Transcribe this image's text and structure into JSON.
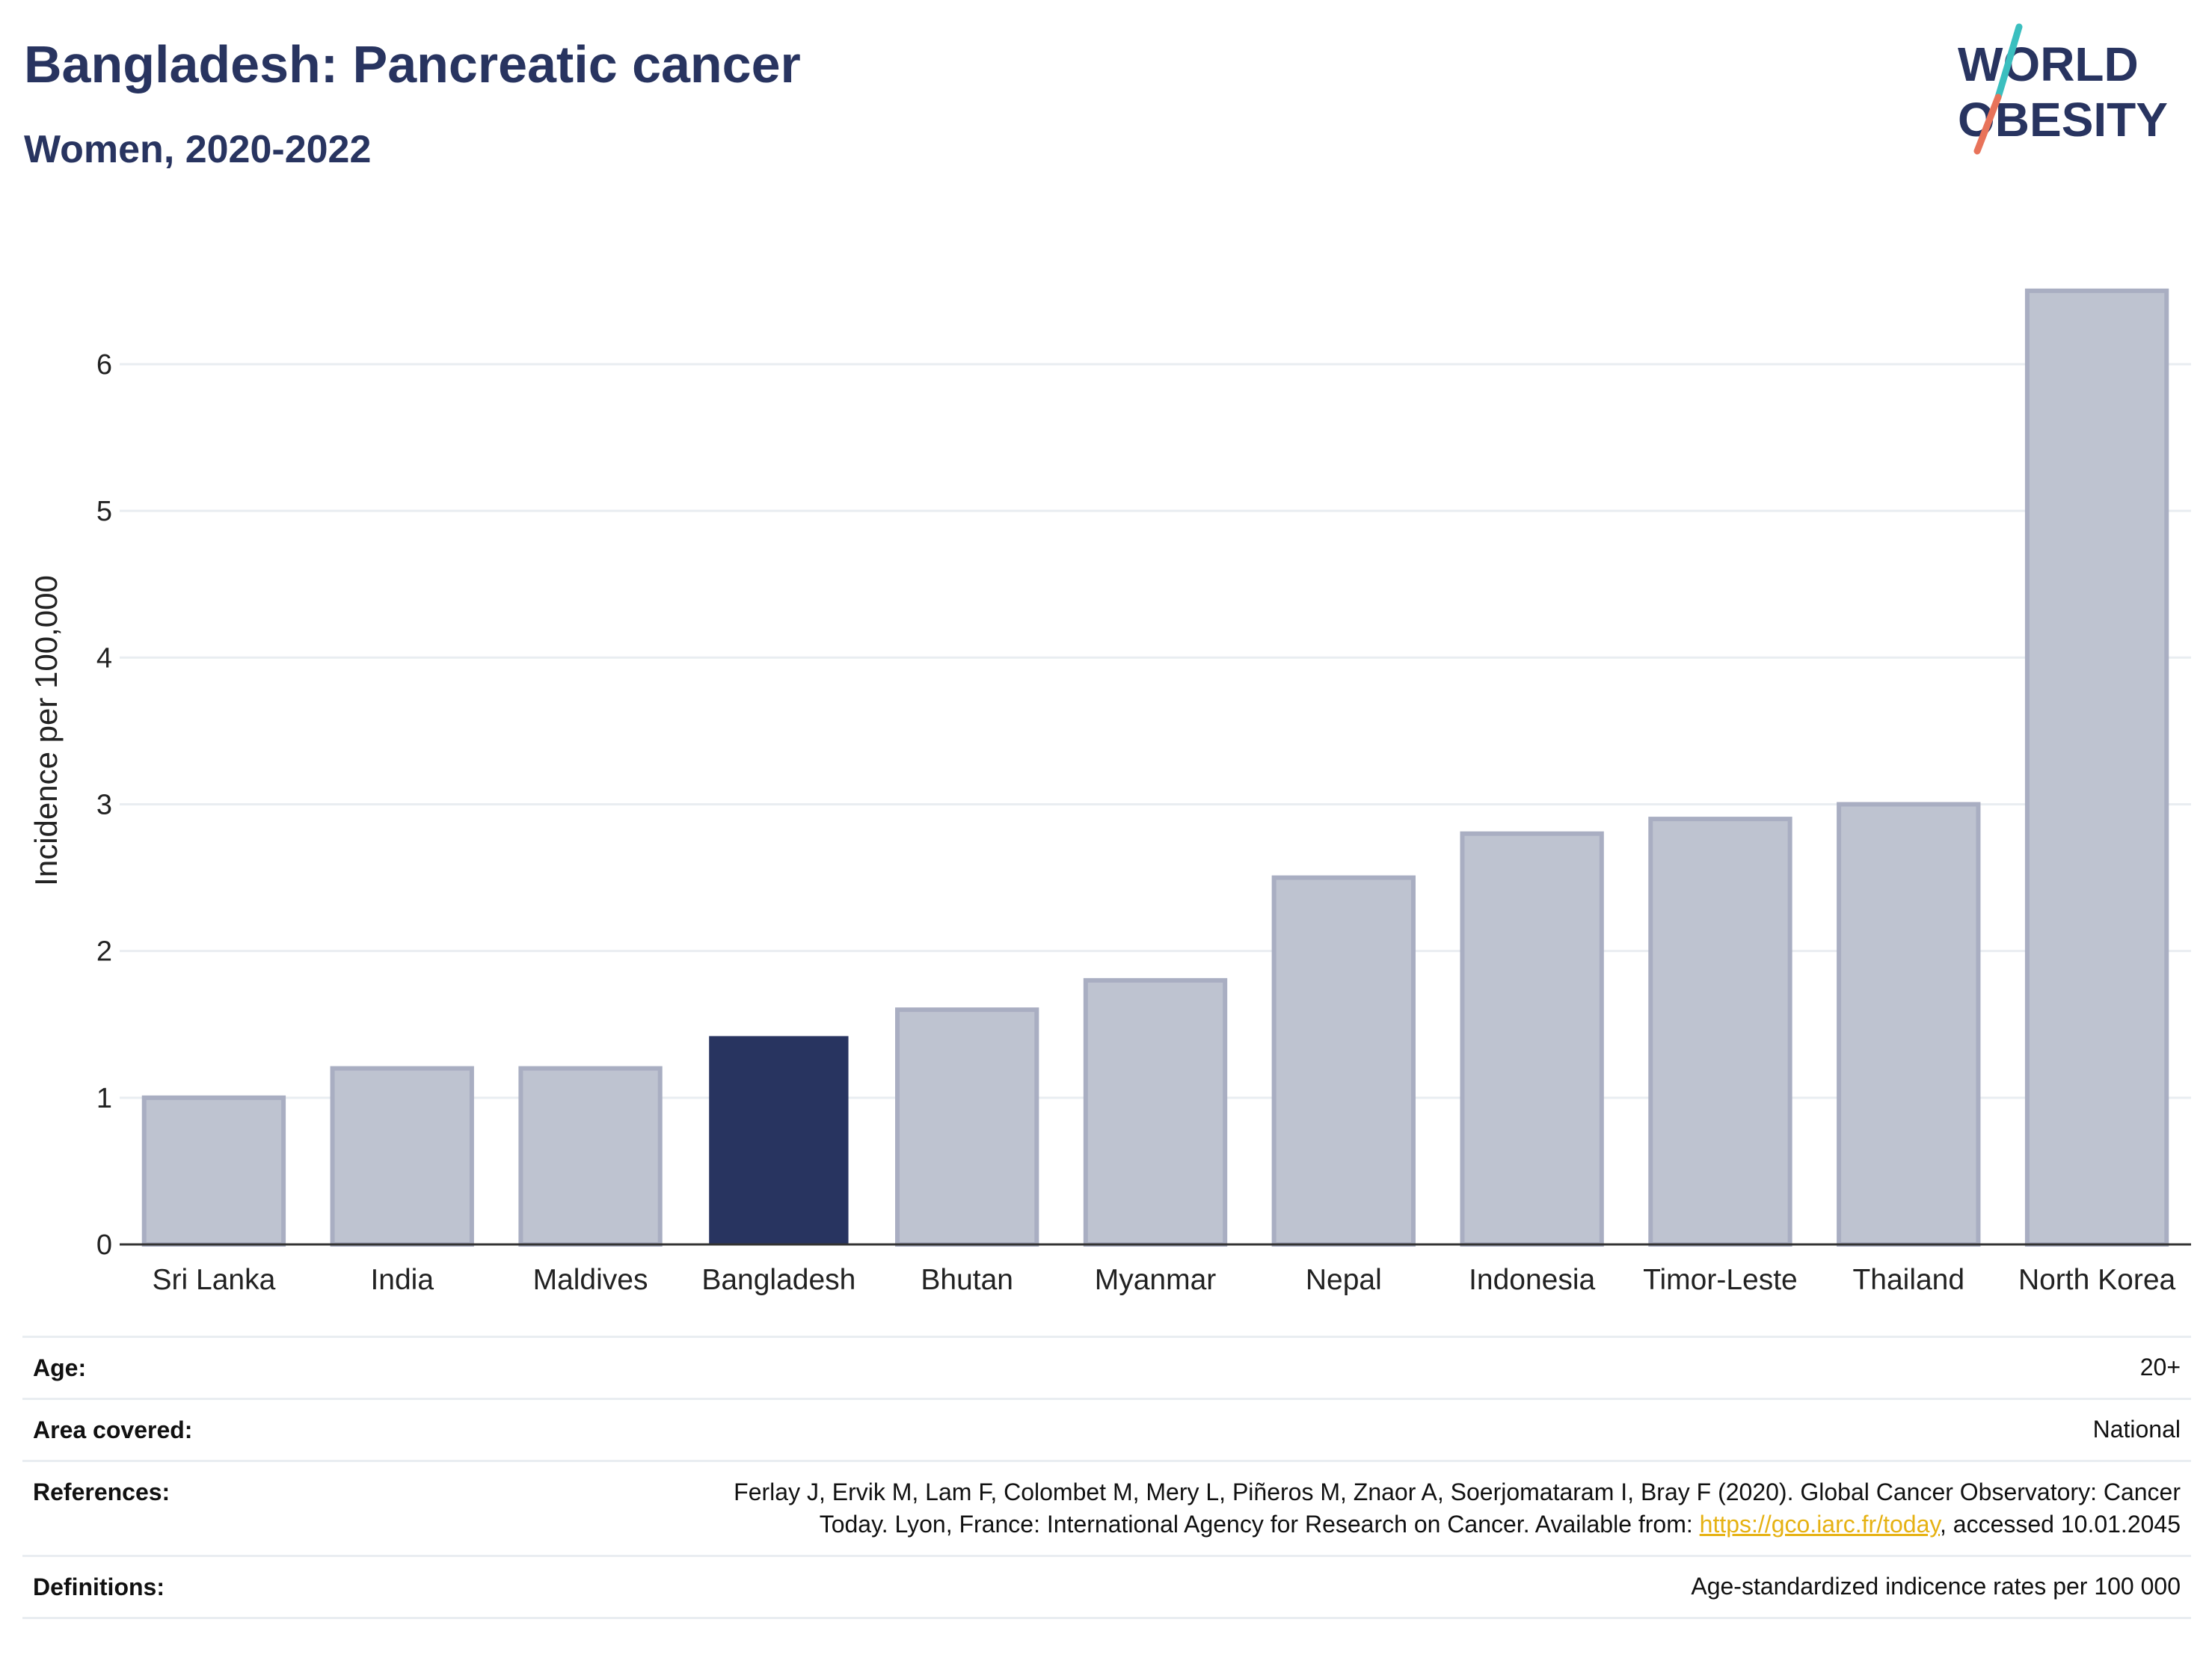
{
  "header": {
    "title": "Bangladesh: Pancreatic cancer",
    "subtitle": "Women, 2020-2022"
  },
  "logo": {
    "line1": "WORLD",
    "line2": "OBESITY",
    "colors": {
      "text": "#283460",
      "slash_top": "#3bbfbf",
      "slash_bottom": "#e8735a"
    }
  },
  "chart_data": {
    "type": "bar",
    "categories": [
      "Sri Lanka",
      "India",
      "Maldives",
      "Bangladesh",
      "Bhutan",
      "Myanmar",
      "Nepal",
      "Indonesia",
      "Timor-Leste",
      "Thailand",
      "North Korea"
    ],
    "values": [
      1.0,
      1.2,
      1.2,
      1.42,
      1.6,
      1.8,
      2.5,
      2.8,
      2.9,
      3.0,
      6.5
    ],
    "highlight": "Bangladesh",
    "ylabel": "Incidence per 100,000",
    "xlabel": "",
    "ylim": [
      0,
      6.8
    ],
    "yticks": [
      0,
      1,
      2,
      3,
      4,
      5,
      6
    ],
    "grid": true,
    "colors": {
      "highlight": "#283460",
      "bar": "#bec3d0",
      "bar_border": "#a9aec2",
      "grid": "#e9edf1",
      "axis": "#333333"
    }
  },
  "meta": {
    "age_label": "Age:",
    "age_value": "20+",
    "area_label": "Area covered:",
    "area_value": "National",
    "references_label": "References:",
    "references_line1": "Ferlay J, Ervik M, Lam F, Colombet M, Mery L, Piñeros M, Znaor A, Soerjomataram I, Bray F (2020). Global Cancer Observatory: Cancer",
    "references_line2_pre": "Today. Lyon, France: International Agency for Research on Cancer. Available from: ",
    "references_link": "https://gco.iarc.fr/today",
    "references_line2_post": ", accessed 10.01.2045",
    "definitions_label": "Definitions:",
    "definitions_value": "Age-standardized indicence rates per 100 000"
  }
}
